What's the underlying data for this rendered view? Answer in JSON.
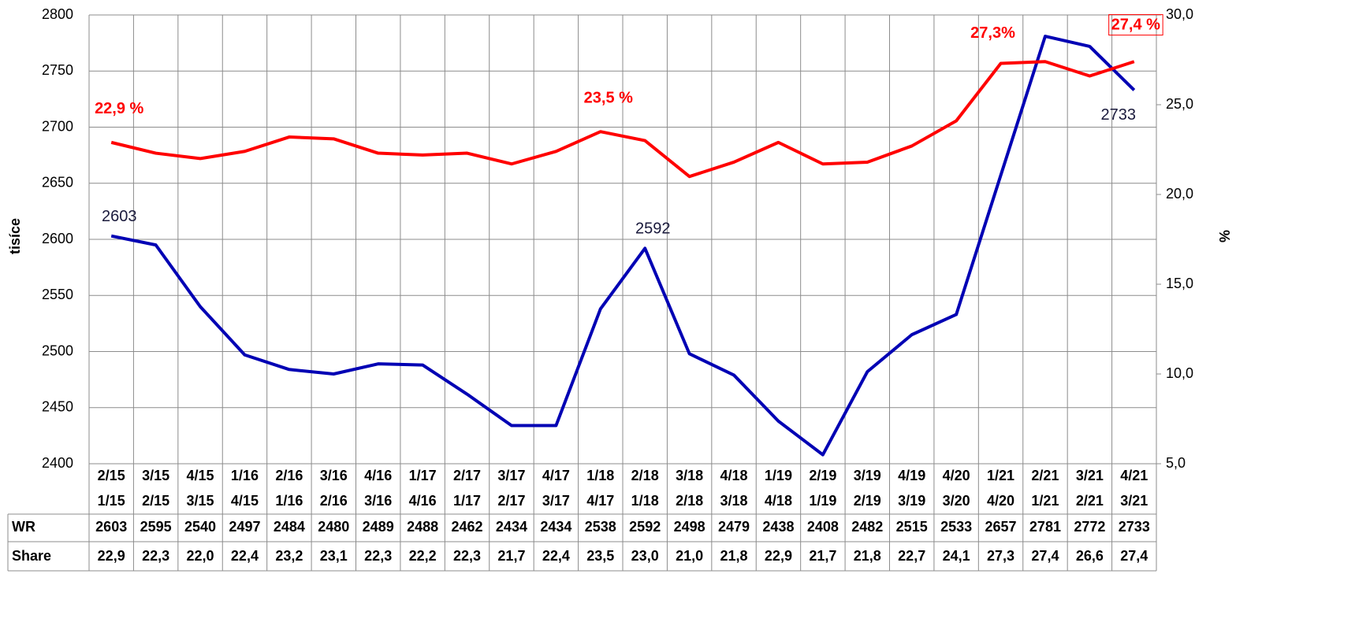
{
  "chart_data": {
    "type": "line",
    "y_label": "tisíce",
    "y2_label": "%",
    "categories": [
      "2/15",
      "3/15",
      "4/15",
      "1/16",
      "2/16",
      "3/16",
      "4/16",
      "1/17",
      "2/17",
      "3/17",
      "4/17",
      "1/18",
      "2/18",
      "3/18",
      "4/18",
      "1/19",
      "2/19",
      "3/19",
      "4/19",
      "4/20",
      "1/21",
      "2/21",
      "3/21",
      "4/21"
    ],
    "categories_sub": [
      "1/15",
      "2/15",
      "3/15",
      "4/15",
      "1/16",
      "2/16",
      "3/16",
      "4/16",
      "1/17",
      "2/17",
      "3/17",
      "4/17",
      "1/18",
      "2/18",
      "3/18",
      "4/18",
      "1/19",
      "2/19",
      "3/19",
      "3/20",
      "4/20",
      "1/21",
      "2/21",
      "3/21"
    ],
    "series": [
      {
        "name": "WR",
        "color": "#0000b4",
        "values": [
          2603,
          2595,
          2540,
          2497,
          2484,
          2480,
          2489,
          2488,
          2462,
          2434,
          2434,
          2538,
          2592,
          2498,
          2479,
          2438,
          2408,
          2482,
          2515,
          2533,
          2657,
          2781,
          2772,
          2733
        ]
      },
      {
        "name": "Share",
        "color": "#ff0000",
        "axis": "y2",
        "values": [
          22.9,
          22.3,
          22.0,
          22.4,
          23.2,
          23.1,
          22.3,
          22.2,
          22.3,
          21.7,
          22.4,
          23.5,
          23.0,
          21.0,
          21.8,
          22.9,
          21.7,
          21.8,
          22.7,
          24.1,
          27.3,
          27.4,
          26.6,
          27.4
        ],
        "value_labels": [
          "22,9",
          "22,3",
          "22,0",
          "22,4",
          "23,2",
          "23,1",
          "22,3",
          "22,2",
          "22,3",
          "21,7",
          "22,4",
          "23,5",
          "23,0",
          "21,0",
          "21,8",
          "22,9",
          "21,7",
          "21,8",
          "22,7",
          "24,1",
          "27,3",
          "27,4",
          "26,6",
          "27,4"
        ]
      }
    ],
    "annotations": [
      {
        "text": "2603",
        "series": 0,
        "index": 0
      },
      {
        "text": "2592",
        "series": 0,
        "index": 12
      },
      {
        "text": "2733",
        "series": 0,
        "index": 23
      },
      {
        "text": "22,9 %",
        "series": 1,
        "index": 0
      },
      {
        "text": "23,5 %",
        "series": 1,
        "index": 11
      },
      {
        "text": "27,3%",
        "series": 1,
        "index": 20
      },
      {
        "text": "27,4 %",
        "series": 1,
        "index": 23,
        "boxed": true
      }
    ],
    "ylim": [
      2400,
      2800
    ],
    "yticks": [
      2400,
      2450,
      2500,
      2550,
      2600,
      2650,
      2700,
      2750,
      2800
    ],
    "y2lim": [
      5.0,
      30.0
    ],
    "y2ticks": [
      {
        "value": 5.0,
        "label": "5,0"
      },
      {
        "value": 10.0,
        "label": "10,0"
      },
      {
        "value": 15.0,
        "label": "15,0"
      },
      {
        "value": 20.0,
        "label": "20,0"
      },
      {
        "value": 25.0,
        "label": "25,0"
      },
      {
        "value": 30.0,
        "label": "30,0"
      }
    ],
    "grid": true
  }
}
